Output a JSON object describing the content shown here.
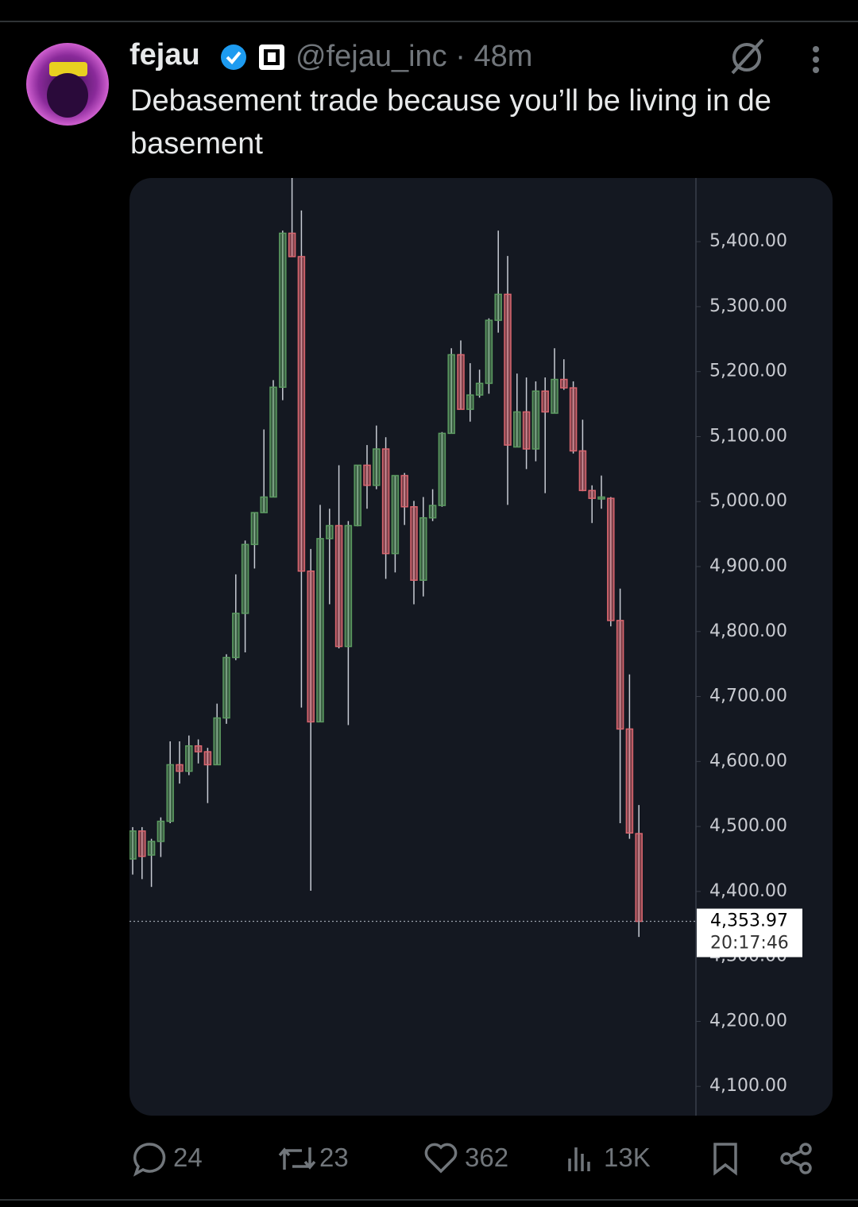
{
  "post": {
    "name": "fejau",
    "handle": "@fejau_inc",
    "separator": "·",
    "time": "48m",
    "text": "Debasement trade because you’ll be living in de basement",
    "stats": {
      "replies": "24",
      "reposts": "23",
      "likes": "362",
      "views": "13K"
    }
  },
  "chart_data": {
    "type": "candlestick",
    "up_color": "#5b9a60",
    "down_color": "#d9666f",
    "open": [
      4450,
      4493,
      4456,
      4477,
      4508,
      4595,
      4585,
      4624,
      4615,
      4595,
      4667,
      4760,
      4828,
      4934,
      4983,
      5007,
      5176,
      5413,
      5377,
      4893,
      4661,
      4943,
      4963,
      4777,
      4963,
      5056,
      5025,
      5081,
      4920,
      5040,
      4992,
      4879,
      4975,
      4994,
      5105,
      5226,
      5142,
      5164,
      5182,
      5279,
      5319,
      5084,
      5138,
      5081,
      5170,
      5136,
      5188,
      5175,
      5078,
      5017,
      5004,
      5005,
      4817,
      4650,
      4489
    ],
    "high": [
      4499,
      4499,
      4481,
      4514,
      4631,
      4631,
      4640,
      4634,
      4621,
      4689,
      4765,
      4888,
      4940,
      4983,
      5111,
      5187,
      5417,
      5498,
      5448,
      4927,
      4995,
      4989,
      5056,
      4970,
      5056,
      5087,
      5117,
      5099,
      5040,
      5044,
      5001,
      5007,
      5019,
      5107,
      5236,
      5248,
      5213,
      5203,
      5282,
      5417,
      5378,
      5197,
      5191,
      5185,
      5191,
      5236,
      5219,
      5185,
      5126,
      5025,
      5040,
      5007,
      4866,
      4734,
      4533
    ],
    "low": [
      4426,
      4419,
      4407,
      4453,
      4505,
      4566,
      4579,
      4597,
      4536,
      4595,
      4658,
      4756,
      4768,
      4897,
      4983,
      5007,
      5156,
      5377,
      4683,
      4401,
      4661,
      4842,
      4774,
      4656,
      4962,
      4989,
      5019,
      4881,
      4891,
      4964,
      4842,
      4854,
      4970,
      4992,
      5105,
      5142,
      5123,
      5160,
      5166,
      5260,
      4995,
      5084,
      5050,
      5062,
      5013,
      5136,
      5172,
      5074,
      5016,
      4967,
      4989,
      4808,
      4505,
      4481,
      4330
    ],
    "close": [
      4493,
      4454,
      4477,
      4508,
      4595,
      4585,
      4624,
      4615,
      4595,
      4667,
      4760,
      4828,
      4934,
      4983,
      5007,
      5176,
      5413,
      5377,
      4893,
      4661,
      4943,
      4963,
      4777,
      4963,
      5056,
      5025,
      5081,
      4920,
      5040,
      4992,
      4879,
      4975,
      4994,
      5105,
      5226,
      5142,
      5164,
      5182,
      5279,
      5319,
      5087,
      5138,
      5081,
      5170,
      5138,
      5188,
      5175,
      5078,
      5017,
      5005,
      5007,
      4817,
      4650,
      4490,
      4353.97
    ],
    "ylim": [
      4055,
      5498
    ],
    "yticks": [
      {
        "value": 4100,
        "label": "4,100.00"
      },
      {
        "value": 4200,
        "label": "4,200.00"
      },
      {
        "value": 4300,
        "label": "4,300.00"
      },
      {
        "value": 4400,
        "label": "4,400.00"
      },
      {
        "value": 4500,
        "label": "4,500.00"
      },
      {
        "value": 4600,
        "label": "4,600.00"
      },
      {
        "value": 4700,
        "label": "4,700.00"
      },
      {
        "value": 4800,
        "label": "4,800.00"
      },
      {
        "value": 4900,
        "label": "4,900.00"
      },
      {
        "value": 5000,
        "label": "5,000.00"
      },
      {
        "value": 5100,
        "label": "5,100.00"
      },
      {
        "value": 5200,
        "label": "5,200.00"
      },
      {
        "value": 5300,
        "label": "5,300.00"
      },
      {
        "value": 5400,
        "label": "5,400.00"
      }
    ],
    "last_price": {
      "value": 4353.97,
      "label": "4,353.97"
    },
    "countdown": "20:17:46"
  }
}
